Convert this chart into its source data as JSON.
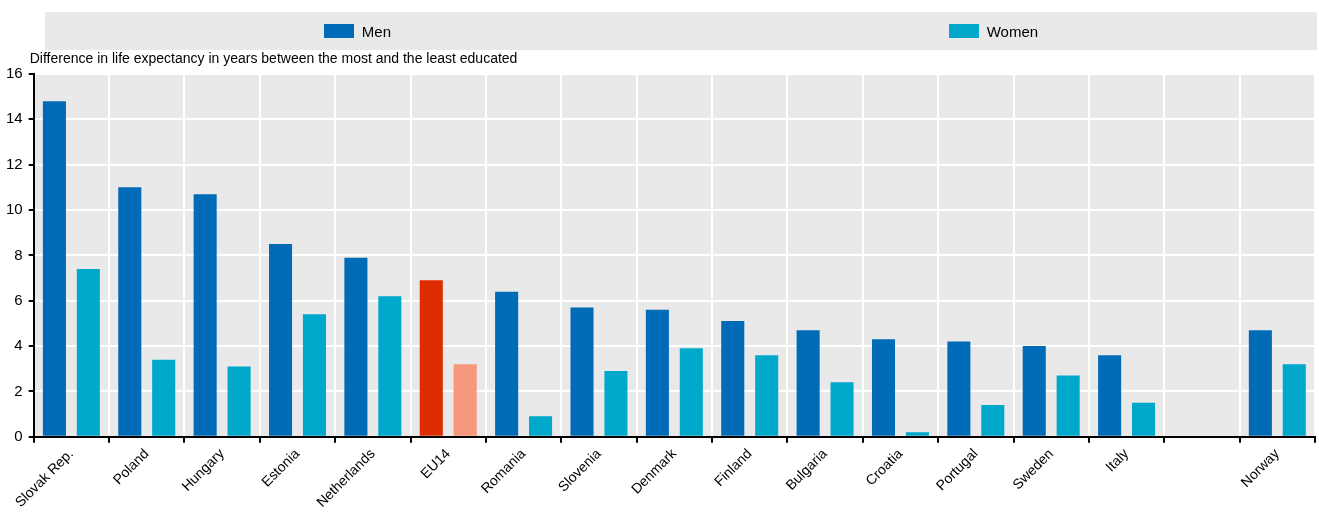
{
  "chart_data": {
    "type": "bar",
    "ylabel": "Difference in life expectancy in years between the most and the least educated",
    "categories": [
      "Slovak Rep.",
      "Poland",
      "Hungary",
      "Estonia",
      "Netherlands",
      "EU14",
      "Romania",
      "Slovenia",
      "Denmark",
      "Finland",
      "Bulgaria",
      "Croatia",
      "Portugal",
      "Sweden",
      "Italy",
      null,
      "Norway"
    ],
    "series": [
      {
        "name": "Men",
        "color": "#006bb6",
        "colors": [
          "#006bb6",
          "#006bb6",
          "#006bb6",
          "#006bb6",
          "#006bb6",
          "#dc2c00",
          "#006bb6",
          "#006bb6",
          "#006bb6",
          "#006bb6",
          "#006bb6",
          "#006bb6",
          "#006bb6",
          "#006bb6",
          "#006bb6",
          "#006bb6",
          "#006bb6"
        ],
        "values": [
          14.8,
          11.0,
          10.7,
          8.5,
          7.9,
          6.9,
          6.4,
          5.7,
          5.6,
          5.1,
          4.7,
          4.3,
          4.2,
          4.0,
          3.6,
          null,
          4.7
        ]
      },
      {
        "name": "Women",
        "color": "#00a9cc",
        "colors": [
          "#00a9cc",
          "#00a9cc",
          "#00a9cc",
          "#00a9cc",
          "#00a9cc",
          "#f4977a",
          "#00a9cc",
          "#00a9cc",
          "#00a9cc",
          "#00a9cc",
          "#00a9cc",
          "#00a9cc",
          "#00a9cc",
          "#00a9cc",
          "#00a9cc",
          "#00a9cc",
          "#00a9cc"
        ],
        "values": [
          7.4,
          3.4,
          3.1,
          5.4,
          6.2,
          3.2,
          0.9,
          2.9,
          3.9,
          3.6,
          2.4,
          0.2,
          1.4,
          2.7,
          1.5,
          null,
          3.2
        ]
      }
    ],
    "ylim": [
      0,
      16
    ],
    "yticks": [
      0,
      2,
      4,
      6,
      8,
      10,
      12,
      14,
      16
    ],
    "grid": true,
    "legend": "top"
  }
}
